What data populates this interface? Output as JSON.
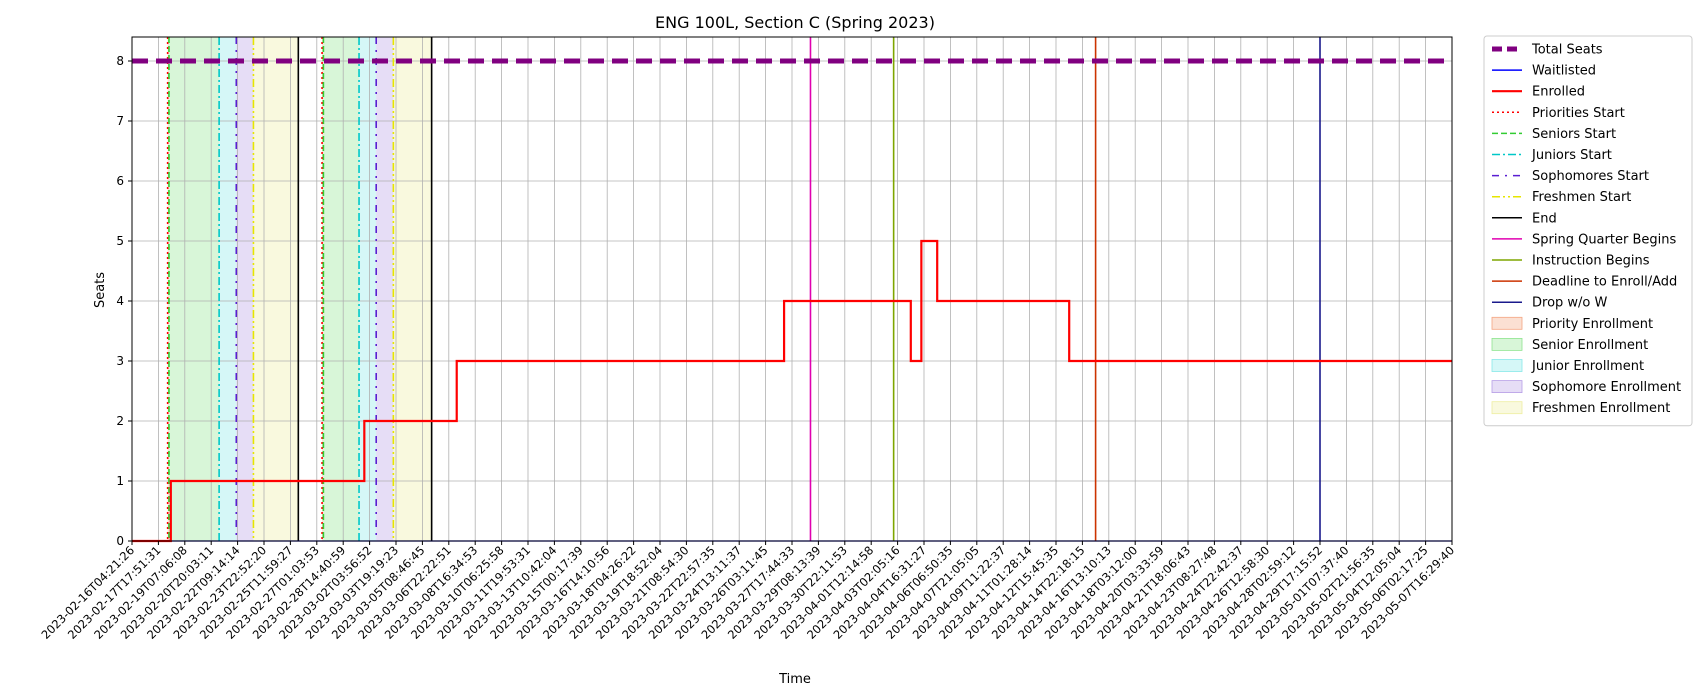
{
  "chart_data": {
    "type": "line",
    "title": "ENG 100L, Section C (Spring 2023)",
    "xlabel": "Time",
    "ylabel": "Seats",
    "ylim": [
      0,
      8.4
    ],
    "yticks": [
      0,
      1,
      2,
      3,
      4,
      5,
      6,
      7,
      8
    ],
    "grid": true,
    "legend_position": "outside-right",
    "xtick_labels": [
      "2023-02-16T04:21:26",
      "2023-02-17T17:51:31",
      "2023-02-19T07:06:08",
      "2023-02-20T20:03:11",
      "2023-02-22T09:14:14",
      "2023-02-23T22:52:20",
      "2023-02-25T11:59:27",
      "2023-02-27T01:03:53",
      "2023-02-28T14:40:59",
      "2023-03-02T03:56:52",
      "2023-03-03T19:19:23",
      "2023-03-05T08:46:45",
      "2023-03-06T22:22:51",
      "2023-03-08T16:34:53",
      "2023-03-10T06:25:58",
      "2023-03-11T19:53:31",
      "2023-03-13T10:42:04",
      "2023-03-15T00:17:39",
      "2023-03-16T14:10:56",
      "2023-03-18T04:26:22",
      "2023-03-19T18:52:04",
      "2023-03-21T08:54:30",
      "2023-03-22T22:57:35",
      "2023-03-24T13:11:37",
      "2023-03-26T03:11:45",
      "2023-03-27T17:44:33",
      "2023-03-29T08:13:39",
      "2023-03-30T22:11:53",
      "2023-04-01T12:14:58",
      "2023-04-03T02:05:16",
      "2023-04-04T16:31:27",
      "2023-04-06T06:50:35",
      "2023-04-07T21:05:05",
      "2023-04-09T11:22:37",
      "2023-04-11T01:28:14",
      "2023-04-12T15:45:35",
      "2023-04-14T22:18:15",
      "2023-04-16T13:10:13",
      "2023-04-18T03:12:00",
      "2023-04-20T03:33:59",
      "2023-04-21T18:06:43",
      "2023-04-23T08:27:48",
      "2023-04-24T22:42:37",
      "2023-04-26T12:58:30",
      "2023-04-28T02:59:12",
      "2023-04-29T17:15:52",
      "2023-05-01T07:37:40",
      "2023-05-02T21:56:35",
      "2023-05-04T12:05:04",
      "2023-05-06T02:17:25",
      "2023-05-07T16:29:40"
    ],
    "x_index_range": [
      0,
      50
    ],
    "series": [
      {
        "name": "Total Seats",
        "color": "#800080",
        "style": "dashed-thick",
        "points": [
          [
            0,
            8
          ],
          [
            50,
            8
          ]
        ]
      },
      {
        "name": "Waitlisted",
        "color": "#0000ff",
        "style": "solid-thin",
        "points": [
          [
            0,
            0
          ],
          [
            50,
            0
          ]
        ]
      },
      {
        "name": "Enrolled",
        "color": "#ff0000",
        "style": "step",
        "points": [
          [
            0,
            0
          ],
          [
            1.47,
            0
          ],
          [
            1.47,
            1
          ],
          [
            8.8,
            1
          ],
          [
            8.8,
            2
          ],
          [
            12.3,
            2
          ],
          [
            12.3,
            3
          ],
          [
            24.7,
            3
          ],
          [
            24.7,
            4
          ],
          [
            29.5,
            4
          ],
          [
            29.5,
            3
          ],
          [
            29.9,
            3
          ],
          [
            29.9,
            5
          ],
          [
            30.5,
            5
          ],
          [
            30.5,
            4
          ],
          [
            35.5,
            4
          ],
          [
            35.5,
            3
          ],
          [
            50,
            3
          ]
        ]
      }
    ],
    "vertical_lines": [
      {
        "name": "Priorities Start",
        "color": "#ff0000",
        "style": "dotted",
        "x": [
          1.35,
          7.2
        ]
      },
      {
        "name": "Seniors Start",
        "color": "#33cc33",
        "style": "dashed",
        "x": [
          1.4,
          7.25
        ]
      },
      {
        "name": "Juniors Start",
        "color": "#00c8c8",
        "style": "dashdot",
        "x": [
          3.3,
          8.6
        ]
      },
      {
        "name": "Sophomores Start",
        "color": "#5a1ed2",
        "style": "loose-dashdot",
        "x": [
          3.95,
          9.25
        ]
      },
      {
        "name": "Freshmen Start",
        "color": "#e6e600",
        "style": "dashdotdot",
        "x": [
          4.6,
          9.9
        ]
      },
      {
        "name": "End",
        "color": "#000000",
        "style": "solid",
        "x": [
          6.3,
          11.35
        ]
      },
      {
        "name": "Spring Quarter Begins",
        "color": "#e000b0",
        "style": "solid",
        "x": [
          25.7
        ]
      },
      {
        "name": "Instruction Begins",
        "color": "#7fa600",
        "style": "solid",
        "x": [
          28.85
        ]
      },
      {
        "name": "Deadline to Enroll/Add",
        "color": "#cc3300",
        "style": "solid",
        "x": [
          36.5
        ]
      },
      {
        "name": "Drop w/o W",
        "color": "#1a1a8c",
        "style": "solid",
        "x": [
          45.0
        ]
      }
    ],
    "shaded_regions": [
      {
        "name": "Priority Enrollment",
        "color": "#f4a582",
        "spans": [
          [
            1.35,
            1.4
          ],
          [
            7.2,
            7.25
          ]
        ]
      },
      {
        "name": "Senior Enrollment",
        "color": "#90e490",
        "spans": [
          [
            1.4,
            3.3
          ],
          [
            7.25,
            8.6
          ]
        ]
      },
      {
        "name": "Junior Enrollment",
        "color": "#88e8e8",
        "spans": [
          [
            3.3,
            3.95
          ],
          [
            8.6,
            9.25
          ]
        ]
      },
      {
        "name": "Sophomore Enrollment",
        "color": "#b79ee6",
        "spans": [
          [
            3.95,
            4.6
          ],
          [
            9.25,
            9.9
          ]
        ]
      },
      {
        "name": "Freshmen Enrollment",
        "color": "#eeeea0",
        "spans": [
          [
            4.6,
            6.3
          ],
          [
            9.9,
            11.35
          ]
        ]
      }
    ],
    "legend": [
      {
        "label": "Total Seats",
        "kind": "line",
        "color": "#800080",
        "style": "dashed-thick"
      },
      {
        "label": "Waitlisted",
        "kind": "line",
        "color": "#0000ff",
        "style": "solid-thin"
      },
      {
        "label": "Enrolled",
        "kind": "line",
        "color": "#ff0000",
        "style": "solid-thick"
      },
      {
        "label": "Priorities Start",
        "kind": "line",
        "color": "#ff0000",
        "style": "dotted"
      },
      {
        "label": "Seniors Start",
        "kind": "line",
        "color": "#33cc33",
        "style": "dashed"
      },
      {
        "label": "Juniors Start",
        "kind": "line",
        "color": "#00c8c8",
        "style": "dashdot"
      },
      {
        "label": "Sophomores Start",
        "kind": "line",
        "color": "#5a1ed2",
        "style": "loose-dashdot"
      },
      {
        "label": "Freshmen Start",
        "kind": "line",
        "color": "#e6e600",
        "style": "dashdotdot"
      },
      {
        "label": "End",
        "kind": "line",
        "color": "#000000",
        "style": "solid"
      },
      {
        "label": "Spring Quarter Begins",
        "kind": "line",
        "color": "#e000b0",
        "style": "solid"
      },
      {
        "label": "Instruction Begins",
        "kind": "line",
        "color": "#7fa600",
        "style": "solid"
      },
      {
        "label": "Deadline to Enroll/Add",
        "kind": "line",
        "color": "#cc3300",
        "style": "solid"
      },
      {
        "label": "Drop w/o W",
        "kind": "line",
        "color": "#1a1a8c",
        "style": "solid"
      },
      {
        "label": "Priority Enrollment",
        "kind": "patch",
        "color": "#f4a582"
      },
      {
        "label": "Senior Enrollment",
        "kind": "patch",
        "color": "#90e490"
      },
      {
        "label": "Junior Enrollment",
        "kind": "patch",
        "color": "#88e8e8"
      },
      {
        "label": "Sophomore Enrollment",
        "kind": "patch",
        "color": "#b79ee6"
      },
      {
        "label": "Freshmen Enrollment",
        "kind": "patch",
        "color": "#eeeea0"
      }
    ]
  }
}
